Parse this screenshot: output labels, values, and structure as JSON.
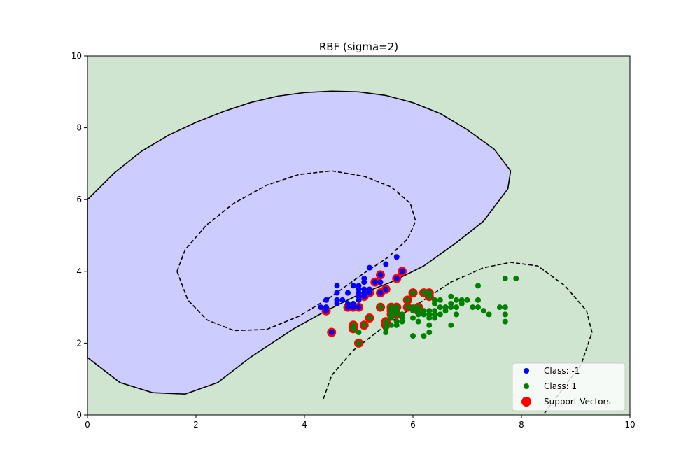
{
  "chart_data": {
    "type": "scatter",
    "title": "RBF (sigma=2)",
    "xlabel": "",
    "ylabel": "",
    "xlim": [
      0,
      10
    ],
    "ylim": [
      0,
      10
    ],
    "xticks": [
      "0",
      "2",
      "4",
      "6",
      "8",
      "10"
    ],
    "yticks": [
      "0",
      "2",
      "4",
      "6",
      "8",
      "10"
    ],
    "xtick_values": [
      0,
      2,
      4,
      6,
      8,
      10
    ],
    "ytick_values": [
      0,
      2,
      4,
      6,
      8,
      10
    ],
    "grid": false,
    "legend_position": "bottom-right",
    "colors": {
      "class_neg": "#0000ff",
      "class_pos": "#008000",
      "support": "#ff0000",
      "region_neg": "#ccccff",
      "region_pos": "#cfe5cf"
    },
    "legend": [
      {
        "label": "Class: -1",
        "color": "#0000ff",
        "marker": "dot"
      },
      {
        "label": "Class: 1",
        "color": "#008000",
        "marker": "dot"
      },
      {
        "label": "Support Vectors",
        "color": "#ff0000",
        "marker": "big-dot"
      }
    ],
    "decision_boundary": {
      "level0": [
        [
          0,
          6.0
        ],
        [
          0.5,
          6.75
        ],
        [
          1,
          7.35
        ],
        [
          1.5,
          7.8
        ],
        [
          2,
          8.15
        ],
        [
          2.5,
          8.45
        ],
        [
          3,
          8.7
        ],
        [
          3.5,
          8.88
        ],
        [
          4,
          8.98
        ],
        [
          4.5,
          9.02
        ],
        [
          5,
          9.0
        ],
        [
          5.5,
          8.9
        ],
        [
          6,
          8.7
        ],
        [
          6.5,
          8.4
        ],
        [
          7,
          7.95
        ],
        [
          7.5,
          7.4
        ],
        [
          7.8,
          6.8
        ],
        [
          7.75,
          6.3
        ],
        [
          7.3,
          5.4
        ],
        [
          6.8,
          4.8
        ],
        [
          6.2,
          4.15
        ],
        [
          5.6,
          3.7
        ],
        [
          5,
          3.35
        ],
        [
          4.4,
          2.9
        ],
        [
          3.8,
          2.4
        ],
        [
          3,
          1.6
        ],
        [
          2.4,
          0.9
        ],
        [
          1.8,
          0.58
        ],
        [
          1.2,
          0.62
        ],
        [
          0.6,
          0.9
        ],
        [
          0,
          1.6
        ]
      ],
      "margin_neg": [
        [
          1.65,
          4.0
        ],
        [
          1.8,
          4.6
        ],
        [
          2.2,
          5.3
        ],
        [
          2.7,
          5.9
        ],
        [
          3.3,
          6.4
        ],
        [
          3.9,
          6.7
        ],
        [
          4.5,
          6.8
        ],
        [
          5.1,
          6.65
        ],
        [
          5.6,
          6.35
        ],
        [
          5.95,
          5.9
        ],
        [
          6.05,
          5.4
        ],
        [
          5.9,
          4.9
        ],
        [
          5.55,
          4.4
        ],
        [
          5.05,
          3.9
        ],
        [
          4.5,
          3.3
        ],
        [
          3.9,
          2.75
        ],
        [
          3.3,
          2.38
        ],
        [
          2.7,
          2.35
        ],
        [
          2.2,
          2.65
        ],
        [
          1.85,
          3.2
        ],
        [
          1.65,
          4.0
        ]
      ],
      "margin_pos": [
        [
          4.35,
          0.45
        ],
        [
          4.5,
          1.1
        ],
        [
          4.9,
          1.8
        ],
        [
          5.5,
          2.5
        ],
        [
          6.1,
          3.1
        ],
        [
          6.7,
          3.7
        ],
        [
          7.3,
          4.1
        ],
        [
          7.8,
          4.25
        ],
        [
          8.3,
          4.15
        ],
        [
          8.8,
          3.6
        ],
        [
          9.2,
          2.9
        ],
        [
          9.3,
          2.3
        ],
        [
          9.1,
          1.4
        ],
        [
          8.7,
          0.6
        ],
        [
          8.4,
          0.0
        ]
      ]
    },
    "series": [
      {
        "name": "Class: -1",
        "points": [
          [
            4.3,
            3.0
          ],
          [
            4.4,
            2.9
          ],
          [
            4.4,
            3.0
          ],
          [
            4.4,
            3.2
          ],
          [
            4.5,
            2.3
          ],
          [
            4.6,
            3.1
          ],
          [
            4.6,
            3.2
          ],
          [
            4.6,
            3.4
          ],
          [
            4.6,
            3.6
          ],
          [
            4.7,
            3.2
          ],
          [
            4.8,
            3.0
          ],
          [
            4.8,
            3.1
          ],
          [
            4.8,
            3.4
          ],
          [
            4.9,
            3.0
          ],
          [
            4.9,
            3.1
          ],
          [
            4.9,
            3.6
          ],
          [
            5.0,
            3.0
          ],
          [
            5.0,
            3.2
          ],
          [
            5.0,
            3.3
          ],
          [
            5.0,
            3.4
          ],
          [
            5.0,
            3.5
          ],
          [
            5.0,
            3.6
          ],
          [
            5.1,
            3.3
          ],
          [
            5.1,
            3.4
          ],
          [
            5.1,
            3.5
          ],
          [
            5.1,
            3.7
          ],
          [
            5.1,
            3.8
          ],
          [
            5.2,
            3.4
          ],
          [
            5.2,
            3.5
          ],
          [
            5.2,
            4.1
          ],
          [
            5.3,
            3.7
          ],
          [
            5.4,
            3.4
          ],
          [
            5.4,
            3.7
          ],
          [
            5.4,
            3.9
          ],
          [
            5.5,
            3.5
          ],
          [
            5.5,
            4.2
          ],
          [
            5.7,
            3.8
          ],
          [
            5.7,
            4.4
          ],
          [
            5.8,
            4.0
          ]
        ]
      },
      {
        "name": "Class: 1",
        "points": [
          [
            4.9,
            2.4
          ],
          [
            4.9,
            2.5
          ],
          [
            5.0,
            2.0
          ],
          [
            5.0,
            2.3
          ],
          [
            5.1,
            2.5
          ],
          [
            5.2,
            2.7
          ],
          [
            5.4,
            3.0
          ],
          [
            5.5,
            2.3
          ],
          [
            5.5,
            2.4
          ],
          [
            5.5,
            2.5
          ],
          [
            5.5,
            2.6
          ],
          [
            5.6,
            2.5
          ],
          [
            5.6,
            2.7
          ],
          [
            5.6,
            2.8
          ],
          [
            5.6,
            2.9
          ],
          [
            5.6,
            3.0
          ],
          [
            5.7,
            2.5
          ],
          [
            5.7,
            2.6
          ],
          [
            5.7,
            2.8
          ],
          [
            5.7,
            2.9
          ],
          [
            5.7,
            3.0
          ],
          [
            5.8,
            2.6
          ],
          [
            5.8,
            2.7
          ],
          [
            5.8,
            2.8
          ],
          [
            5.9,
            3.0
          ],
          [
            5.9,
            3.2
          ],
          [
            6.0,
            2.2
          ],
          [
            6.0,
            2.7
          ],
          [
            6.0,
            2.9
          ],
          [
            6.0,
            3.0
          ],
          [
            6.0,
            3.4
          ],
          [
            6.1,
            2.6
          ],
          [
            6.1,
            2.8
          ],
          [
            6.1,
            2.9
          ],
          [
            6.1,
            3.0
          ],
          [
            6.2,
            2.2
          ],
          [
            6.2,
            2.8
          ],
          [
            6.2,
            2.9
          ],
          [
            6.2,
            3.4
          ],
          [
            6.3,
            2.3
          ],
          [
            6.3,
            2.5
          ],
          [
            6.3,
            2.7
          ],
          [
            6.3,
            2.8
          ],
          [
            6.3,
            2.9
          ],
          [
            6.3,
            3.3
          ],
          [
            6.3,
            3.4
          ],
          [
            6.4,
            2.7
          ],
          [
            6.4,
            2.8
          ],
          [
            6.4,
            2.9
          ],
          [
            6.4,
            3.1
          ],
          [
            6.4,
            3.2
          ],
          [
            6.5,
            2.8
          ],
          [
            6.5,
            3.0
          ],
          [
            6.5,
            3.2
          ],
          [
            6.6,
            2.9
          ],
          [
            6.6,
            3.0
          ],
          [
            6.7,
            2.5
          ],
          [
            6.7,
            3.0
          ],
          [
            6.7,
            3.1
          ],
          [
            6.7,
            3.3
          ],
          [
            6.8,
            2.8
          ],
          [
            6.8,
            3.0
          ],
          [
            6.8,
            3.2
          ],
          [
            6.9,
            3.1
          ],
          [
            6.9,
            3.2
          ],
          [
            7.0,
            3.2
          ],
          [
            7.1,
            3.0
          ],
          [
            7.2,
            3.0
          ],
          [
            7.2,
            3.2
          ],
          [
            7.2,
            3.6
          ],
          [
            7.3,
            2.9
          ],
          [
            7.4,
            2.8
          ],
          [
            7.6,
            3.0
          ],
          [
            7.7,
            2.6
          ],
          [
            7.7,
            2.8
          ],
          [
            7.7,
            3.0
          ],
          [
            7.7,
            3.8
          ],
          [
            7.9,
            3.8
          ]
        ]
      },
      {
        "name": "Support Vectors",
        "points": [
          [
            4.4,
            2.9
          ],
          [
            4.5,
            2.3
          ],
          [
            4.8,
            3.0
          ],
          [
            4.9,
            3.0
          ],
          [
            5.0,
            3.0
          ],
          [
            5.1,
            3.3
          ],
          [
            5.2,
            3.4
          ],
          [
            5.3,
            3.7
          ],
          [
            5.4,
            3.4
          ],
          [
            5.4,
            3.9
          ],
          [
            5.5,
            3.5
          ],
          [
            5.7,
            3.8
          ],
          [
            5.8,
            4.0
          ],
          [
            4.9,
            2.4
          ],
          [
            4.9,
            2.5
          ],
          [
            5.0,
            2.0
          ],
          [
            5.1,
            2.5
          ],
          [
            5.2,
            2.7
          ],
          [
            5.4,
            3.0
          ],
          [
            5.5,
            2.5
          ],
          [
            5.5,
            2.6
          ],
          [
            5.6,
            2.8
          ],
          [
            5.6,
            2.9
          ],
          [
            5.6,
            3.0
          ],
          [
            5.7,
            2.8
          ],
          [
            5.7,
            3.0
          ],
          [
            5.9,
            3.0
          ],
          [
            5.9,
            3.2
          ],
          [
            6.0,
            3.4
          ],
          [
            6.1,
            2.9
          ],
          [
            6.1,
            3.0
          ],
          [
            6.2,
            3.4
          ],
          [
            6.3,
            3.3
          ],
          [
            6.3,
            3.4
          ]
        ]
      }
    ]
  }
}
